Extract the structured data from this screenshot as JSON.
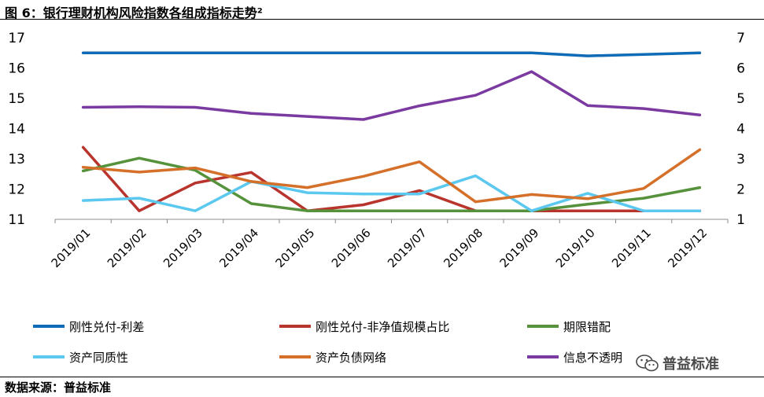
{
  "figure": {
    "title": "图 6：银行理财机构风险指数各组成指标走势²",
    "source": "数据来源：普益标准",
    "watermark": "普益标准"
  },
  "chart_data": {
    "type": "line",
    "categories": [
      "2019/01",
      "2019/02",
      "2019/03",
      "2019/04",
      "2019/05",
      "2019/06",
      "2019/07",
      "2019/08",
      "2019/09",
      "2019/10",
      "2019/11",
      "2019/12"
    ],
    "left_axis": {
      "ylim": [
        11,
        17
      ],
      "ticks": [
        11,
        12,
        13,
        14,
        15,
        16,
        17
      ]
    },
    "right_axis": {
      "ylim": [
        1,
        7
      ],
      "ticks": [
        1,
        2,
        3,
        4,
        5,
        6,
        7
      ]
    },
    "grid": false,
    "legend_position": "bottom",
    "series": [
      {
        "name": "刚性兑付-利差",
        "color": "#0f6bb5",
        "axis": "left",
        "values": [
          16.5,
          16.5,
          16.5,
          16.5,
          16.5,
          16.5,
          16.5,
          16.5,
          16.5,
          16.4,
          16.45,
          16.5
        ]
      },
      {
        "name": "刚性兑付-非净值规模占比",
        "color": "#b8342d",
        "axis": "left",
        "values": [
          13.38,
          11.28,
          12.2,
          12.55,
          11.28,
          11.48,
          11.95,
          11.28,
          11.28,
          11.28,
          11.28,
          11.28
        ]
      },
      {
        "name": "期限错配",
        "color": "#56923c",
        "axis": "left",
        "values": [
          12.6,
          13.02,
          12.62,
          11.52,
          11.28,
          11.28,
          11.28,
          11.28,
          11.28,
          11.5,
          11.7,
          12.05
        ]
      },
      {
        "name": "资产同质性",
        "color": "#5bc8ef",
        "axis": "left",
        "values": [
          11.62,
          11.7,
          11.28,
          12.25,
          11.88,
          11.84,
          11.84,
          12.44,
          11.28,
          11.86,
          11.28,
          11.28
        ]
      },
      {
        "name": "资产负债网络",
        "color": "#d5702a",
        "axis": "left",
        "values": [
          12.72,
          12.56,
          12.7,
          12.25,
          12.05,
          12.42,
          12.9,
          11.58,
          11.82,
          11.68,
          12.02,
          13.3
        ]
      },
      {
        "name": "信息不透明",
        "color": "#7a3aa0",
        "axis": "right",
        "values": [
          4.7,
          4.72,
          4.7,
          4.5,
          4.4,
          4.3,
          4.75,
          5.1,
          5.88,
          4.76,
          4.66,
          4.45
        ]
      }
    ]
  }
}
